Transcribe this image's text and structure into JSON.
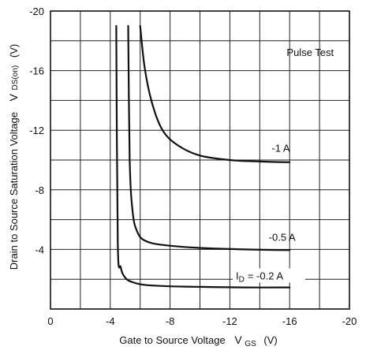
{
  "chart_data": {
    "type": "line",
    "title": "",
    "xlabel": "Gate to Source Voltage",
    "xlabel_symbol": "V",
    "xlabel_subscript": "GS",
    "xlabel_unit": "(V)",
    "ylabel": "Drain to Source Saturation Voltage",
    "ylabel_symbol": "V",
    "ylabel_subscript": "DS(on)",
    "ylabel_unit": "(V)",
    "xlim": [
      0,
      -20
    ],
    "ylim": [
      0,
      -20
    ],
    "x_ticks": [
      0,
      -4,
      -8,
      -12,
      -16,
      -20
    ],
    "x_tick_labels": [
      "0",
      "-4",
      "-8",
      "-12",
      "-16",
      "-20"
    ],
    "y_ticks": [
      -4,
      -8,
      -12,
      -16,
      -20
    ],
    "y_tick_labels": [
      "-4",
      "-8",
      "-12",
      "-16",
      "-20"
    ],
    "grid": true,
    "annotation": "Pulse Test",
    "series": [
      {
        "name": "-1 A",
        "x": [
          -6.0,
          -6.3,
          -6.8,
          -7.5,
          -8.5,
          -10,
          -12,
          -14,
          -16
        ],
        "y": [
          -19,
          -16.2,
          -13.8,
          -12.0,
          -11.0,
          -10.3,
          -10.0,
          -9.9,
          -9.85
        ]
      },
      {
        "name": "-0.5 A",
        "x": [
          -5.2,
          -5.3,
          -5.5,
          -5.8,
          -6.3,
          -7.5,
          -10,
          -13,
          -16
        ],
        "y": [
          -19,
          -10.0,
          -6.5,
          -5.2,
          -4.6,
          -4.3,
          -4.1,
          -4.0,
          -3.95
        ]
      },
      {
        "name": "ID = -0.2 A",
        "label_main": "I",
        "label_sub": "D",
        "label_rest": "= -0.2 A",
        "x": [
          -4.4,
          -4.5,
          -4.7,
          -5.0,
          -5.5,
          -6.5,
          -9,
          -13,
          -16
        ],
        "y": [
          -19,
          -4.5,
          -2.8,
          -2.1,
          -1.8,
          -1.6,
          -1.5,
          -1.45,
          -1.45
        ]
      }
    ]
  }
}
